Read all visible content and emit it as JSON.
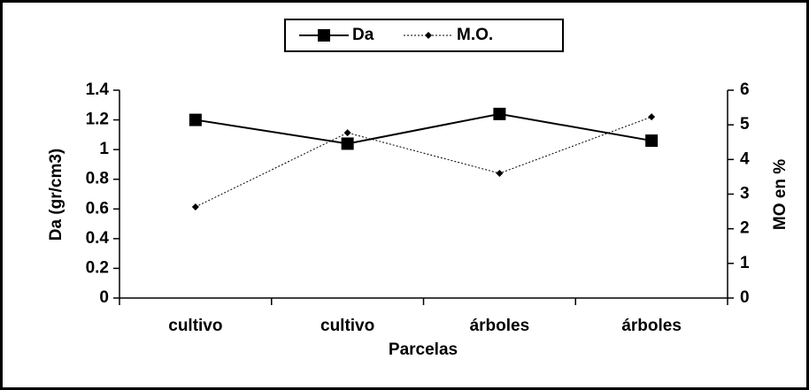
{
  "chart_data": {
    "type": "line",
    "categories": [
      "cultivo",
      "cultivo",
      "árboles",
      "árboles"
    ],
    "series": [
      {
        "name": "Da",
        "color": "#000000",
        "values": [
          1.2,
          1.04,
          1.24,
          1.06
        ]
      },
      {
        "name": "M.O.",
        "color": "#000000",
        "axis": "y2",
        "values": [
          2.63,
          4.77,
          3.6,
          5.23
        ]
      }
    ],
    "xlabel": "Parcelas",
    "ylabel": "Da (gr/cm3)",
    "y2label": "MO en %",
    "ylim": [
      0,
      1.4
    ],
    "yticks": [
      0,
      0.2,
      0.4,
      0.6,
      0.8,
      1,
      1.2,
      1.4
    ],
    "y2lim": [
      0,
      6
    ],
    "y2ticks": [
      0,
      1,
      2,
      3,
      4,
      5,
      6
    ],
    "legend": "top"
  }
}
